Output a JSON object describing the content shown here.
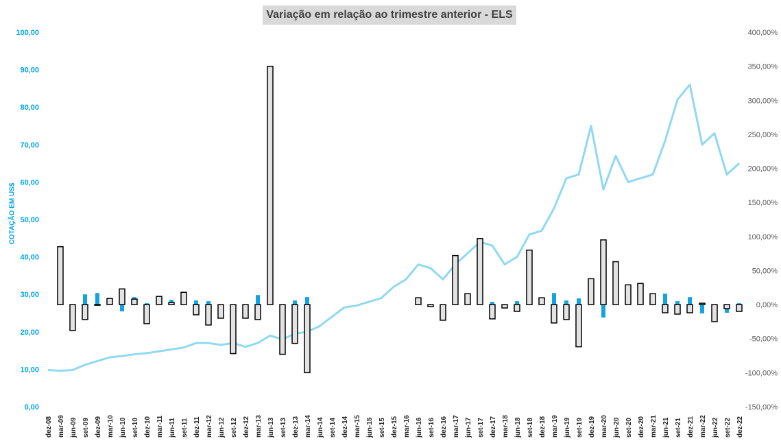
{
  "colors": {
    "price_line": "#8fd9f2",
    "variation_bar": "#e3e3e3",
    "variation_bar_stroke": "#000000",
    "dividend_bar": "#14a3e0",
    "left_axis_text": "#00a5e3",
    "right_axis_text": "#595959"
  },
  "chart_data": {
    "type": "bar+line",
    "title": "Variação em relação ao trimestre anterior - ELS",
    "ylabel_left": "COTAÇÃO EM US$",
    "left_axis": {
      "min": 0,
      "max": 100,
      "step": 10,
      "tick_labels": [
        "0,00",
        "10,00",
        "20,00",
        "30,00",
        "40,00",
        "50,00",
        "60,00",
        "70,00",
        "80,00",
        "90,00",
        "100,00"
      ]
    },
    "right_axis": {
      "min": -150,
      "max": 400,
      "step": 50,
      "tick_labels": [
        "-150,00%",
        "-100,00%",
        "-50,00%",
        "0,00%",
        "50,00%",
        "100,00%",
        "150,00%",
        "200,00%",
        "250,00%",
        "300,00%",
        "350,00%",
        "400,00%"
      ]
    },
    "categories": [
      "dez-08",
      "mar-09",
      "jun-09",
      "set-09",
      "dez-09",
      "mar-10",
      "jun-10",
      "set-10",
      "dez-10",
      "mar-11",
      "jun-11",
      "set-11",
      "dez-11",
      "mar-12",
      "jun-12",
      "set-12",
      "dez-12",
      "mar-13",
      "jun-13",
      "set-13",
      "dez-13",
      "mar-14",
      "jun-14",
      "set-14",
      "dez-14",
      "mar-15",
      "jun-15",
      "set-15",
      "dez-15",
      "mar-16",
      "jun-16",
      "set-16",
      "dez-16",
      "mar-17",
      "jun-17",
      "set-17",
      "dez-17",
      "mar-18",
      "jun-18",
      "set-18",
      "dez-18",
      "mar-19",
      "jun-19",
      "set-19",
      "dez-19",
      "mar-20",
      "jun-20",
      "set-20",
      "dez-20",
      "mar-21",
      "jun-21",
      "set-21",
      "dez-21",
      "mar-22",
      "jun-22",
      "set-22",
      "dez-22"
    ],
    "series": [
      {
        "axis": "right",
        "type": "bar",
        "values": [
          null,
          85,
          -38,
          -22,
          -1,
          9,
          23,
          8,
          -28,
          12,
          3,
          18,
          -15,
          -30,
          -20,
          -72,
          -20,
          -22,
          350,
          -73,
          -57,
          -100,
          null,
          null,
          null,
          null,
          null,
          null,
          null,
          null,
          10,
          -3,
          -23,
          72,
          16,
          97,
          -21,
          -5,
          -10,
          80,
          10,
          -27,
          -22,
          -62,
          38,
          95,
          63,
          29,
          31,
          16,
          -12,
          -14,
          -12,
          2,
          -25,
          -6,
          -10
        ]
      },
      {
        "axis": "right",
        "type": "bar",
        "values": [
          null,
          null,
          null,
          15,
          17,
          7,
          -10,
          11,
          2,
          null,
          7,
          null,
          6,
          5,
          null,
          null,
          null,
          14,
          null,
          -13,
          6,
          11,
          null,
          null,
          null,
          null,
          null,
          null,
          null,
          null,
          10,
          null,
          -7,
          7,
          12,
          null,
          4,
          null,
          5,
          4,
          null,
          17,
          6,
          9,
          4,
          -19,
          10,
          null,
          4,
          null,
          16,
          5,
          11,
          -13,
          -12,
          -12,
          2
        ]
      },
      {
        "axis": "left",
        "type": "line",
        "values": [
          9.8,
          9.6,
          9.8,
          11.2,
          12.2,
          13.2,
          13.5,
          14.0,
          14.3,
          14.8,
          15.3,
          15.8,
          17.0,
          17.0,
          16.5,
          17.0,
          16.0,
          17.0,
          19.0,
          18.0,
          19.5,
          20.0,
          21.5,
          24.0,
          26.5,
          27.0,
          28.0,
          29.0,
          32.0,
          34.0,
          38.0,
          37.0,
          34.0,
          38.0,
          41.0,
          44.0,
          43.0,
          38.0,
          40.0,
          46.0,
          47.0,
          53.0,
          61.0,
          62.0,
          75.0,
          58.0,
          67.0,
          60.0,
          61.0,
          62.0,
          71.0,
          82.0,
          86.0,
          70.0,
          73.0,
          62.0,
          65.0
        ]
      }
    ],
    "grid": false,
    "legend": "none"
  }
}
